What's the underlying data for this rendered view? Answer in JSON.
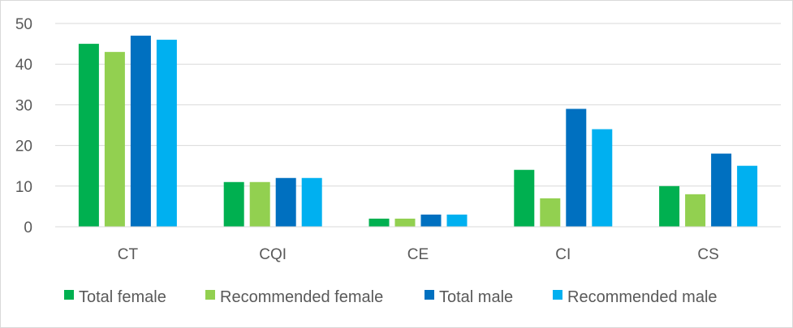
{
  "chart_data": {
    "type": "bar",
    "title": "",
    "xlabel": "",
    "ylabel": "",
    "categories": [
      "CT",
      "CQI",
      "CE",
      "CI",
      "CS"
    ],
    "series": [
      {
        "name": "Total female",
        "values": [
          45,
          11,
          2,
          14,
          10
        ],
        "color": "#00b050"
      },
      {
        "name": "Recommended female",
        "values": [
          43,
          11,
          2,
          7,
          8
        ],
        "color": "#92d050"
      },
      {
        "name": "Total male",
        "values": [
          47,
          12,
          3,
          29,
          18
        ],
        "color": "#0070c0"
      },
      {
        "name": "Recommended male",
        "values": [
          46,
          12,
          3,
          24,
          15
        ],
        "color": "#00b0f0"
      }
    ],
    "ylim": [
      0,
      50
    ],
    "yticks": [
      "0",
      "10",
      "20",
      "30",
      "40",
      "50"
    ],
    "grid": true,
    "legend_position": "bottom"
  }
}
